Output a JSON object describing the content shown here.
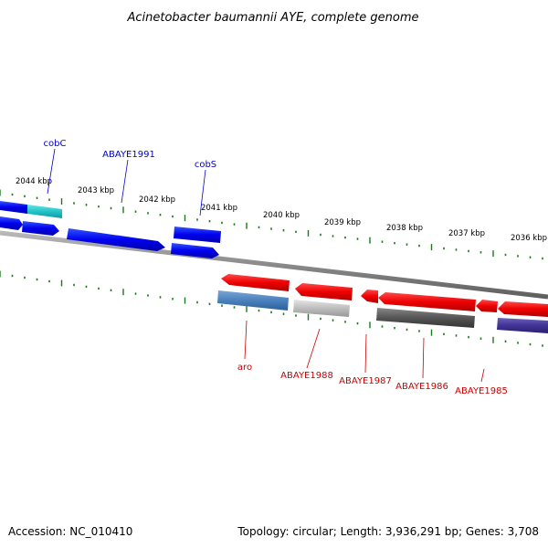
{
  "title": "Acinetobacter baumannii AYE, complete genome",
  "footer": {
    "accession": "Accession: NC_010410",
    "topology": "Topology: circular; Length: 3,936,291 bp; Genes: 3,708"
  },
  "colors": {
    "forward_label": "#0000cc",
    "reverse_label": "#cc0000",
    "tick": "#1a7a1a",
    "backbone": "#888888"
  },
  "scale_labels": [
    "2044 kbp",
    "2043 kbp",
    "2042 kbp",
    "2041 kbp",
    "2040 kbp",
    "2039 kbp",
    "2038 kbp",
    "2037 kbp",
    "2036 kbp"
  ],
  "forward_gene_labels": [
    "cobC",
    "ABAYE1991",
    "cobS"
  ],
  "reverse_gene_labels": [
    "aro",
    "ABAYE1988",
    "ABAYE1987",
    "ABAYE1986",
    "ABAYE1985"
  ]
}
